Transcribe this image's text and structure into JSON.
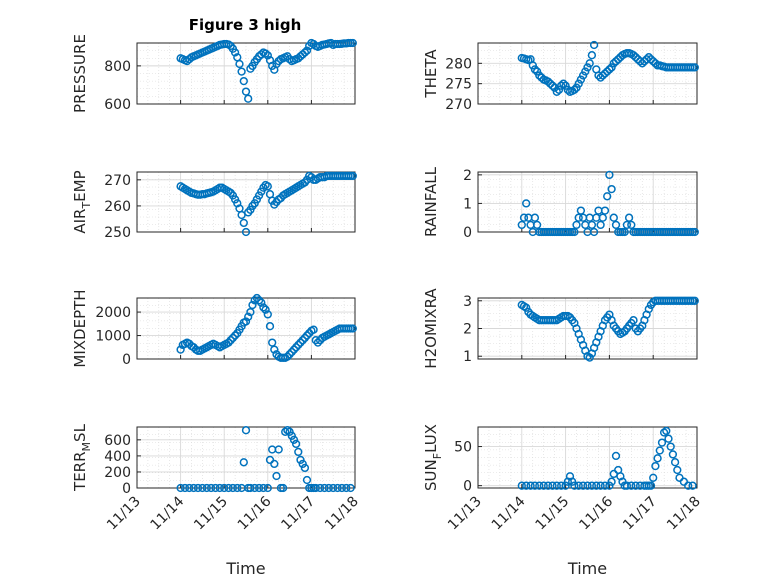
{
  "figure": {
    "title": "Figure 3 high",
    "marker_color": "#0072BD",
    "axis_color": "#262626",
    "grid_color": "#d8d8d8"
  },
  "chart_data": [
    {
      "type": "scatter",
      "name": "pressure",
      "title": "Figure 3 high",
      "ylabel_main": "PRESSURE",
      "ylabel_sub": "",
      "xlabel": "",
      "ylim": [
        600,
        920
      ],
      "yticks": [
        600,
        800
      ],
      "xlim": [
        0,
        5
      ],
      "x": [
        1.0,
        1.05,
        1.1,
        1.15,
        1.2,
        1.25,
        1.3,
        1.35,
        1.4,
        1.45,
        1.5,
        1.55,
        1.6,
        1.65,
        1.7,
        1.75,
        1.8,
        1.85,
        1.9,
        1.95,
        2.0,
        2.05,
        2.1,
        2.15,
        2.2,
        2.25,
        2.3,
        2.35,
        2.4,
        2.45,
        2.5,
        2.55,
        2.6,
        2.65,
        2.7,
        2.75,
        2.8,
        2.85,
        2.9,
        2.95,
        3.0,
        3.05,
        3.1,
        3.15,
        3.2,
        3.25,
        3.3,
        3.35,
        3.4,
        3.45,
        3.5,
        3.55,
        3.6,
        3.65,
        3.7,
        3.75,
        3.8,
        3.85,
        3.9,
        3.95,
        4.0,
        4.05,
        4.1,
        4.15,
        4.2,
        4.25,
        4.3,
        4.35,
        4.4,
        4.45,
        4.5,
        4.55,
        4.6,
        4.65,
        4.7,
        4.75,
        4.8,
        4.85,
        4.9,
        4.95
      ],
      "y": [
        840,
        835,
        830,
        825,
        835,
        845,
        850,
        855,
        860,
        865,
        870,
        875,
        880,
        885,
        890,
        895,
        900,
        905,
        910,
        912,
        915,
        915,
        912,
        905,
        890,
        870,
        845,
        810,
        770,
        720,
        665,
        628,
        785,
        800,
        820,
        835,
        850,
        860,
        870,
        865,
        855,
        830,
        800,
        780,
        810,
        825,
        835,
        840,
        845,
        850,
        835,
        825,
        830,
        835,
        840,
        850,
        860,
        870,
        880,
        905,
        920,
        915,
        905,
        900,
        905,
        910,
        912,
        915,
        918,
        920,
        910,
        915,
        915,
        915,
        916,
        918,
        918,
        920,
        920,
        920
      ]
    },
    {
      "type": "scatter",
      "name": "theta",
      "ylabel_main": "THETA",
      "ylabel_sub": "",
      "xlabel": "",
      "ylim": [
        270,
        285
      ],
      "yticks": [
        270,
        275,
        280
      ],
      "xlim": [
        0,
        5
      ],
      "x": [
        1.0,
        1.05,
        1.1,
        1.15,
        1.2,
        1.25,
        1.3,
        1.35,
        1.4,
        1.45,
        1.5,
        1.55,
        1.6,
        1.65,
        1.7,
        1.75,
        1.8,
        1.85,
        1.9,
        1.95,
        2.0,
        2.05,
        2.1,
        2.15,
        2.2,
        2.25,
        2.3,
        2.35,
        2.4,
        2.45,
        2.5,
        2.55,
        2.6,
        2.65,
        2.7,
        2.75,
        2.8,
        2.85,
        2.9,
        2.95,
        3.0,
        3.05,
        3.1,
        3.15,
        3.2,
        3.25,
        3.3,
        3.35,
        3.4,
        3.45,
        3.5,
        3.55,
        3.6,
        3.65,
        3.7,
        3.75,
        3.8,
        3.85,
        3.9,
        3.95,
        4.0,
        4.05,
        4.1,
        4.15,
        4.2,
        4.25,
        4.3,
        4.35,
        4.4,
        4.45,
        4.5,
        4.55,
        4.6,
        4.65,
        4.7,
        4.75,
        4.8,
        4.85,
        4.9,
        4.95
      ],
      "y": [
        281.3,
        281.2,
        281.0,
        280.8,
        281.0,
        279.5,
        278.5,
        278.0,
        277.0,
        276.5,
        276.0,
        275.8,
        275.5,
        275.0,
        274.5,
        274.0,
        273.0,
        273.5,
        274.5,
        275.0,
        274.5,
        273.5,
        273.0,
        273.2,
        273.5,
        274.0,
        275.0,
        276.0,
        277.0,
        278.0,
        279.0,
        280.0,
        282.0,
        284.5,
        278.5,
        277.0,
        276.5,
        277.0,
        277.5,
        278.0,
        278.5,
        279.0,
        280.0,
        280.5,
        281.0,
        281.5,
        282.0,
        282.3,
        282.5,
        282.5,
        282.3,
        282.0,
        281.5,
        281.0,
        280.5,
        280.0,
        280.5,
        281.0,
        281.5,
        281.0,
        280.5,
        280.0,
        279.5,
        279.5,
        279.3,
        279.2,
        279.0,
        279.0,
        279.0,
        279.0,
        279.0,
        279.0,
        279.0,
        279.0,
        279.0,
        279.0,
        279.0,
        279.0,
        279.0,
        279.0
      ]
    },
    {
      "type": "scatter",
      "name": "air-temp",
      "ylabel_main": "AIR",
      "ylabel_sub": "T",
      "ylabel_rest": "EMP",
      "xlabel": "",
      "ylim": [
        250,
        273
      ],
      "yticks": [
        250,
        260,
        270
      ],
      "xlim": [
        0,
        5
      ],
      "x": [
        1.0,
        1.05,
        1.1,
        1.15,
        1.2,
        1.25,
        1.3,
        1.35,
        1.4,
        1.45,
        1.5,
        1.55,
        1.6,
        1.65,
        1.7,
        1.75,
        1.8,
        1.85,
        1.9,
        1.95,
        2.0,
        2.05,
        2.1,
        2.15,
        2.2,
        2.25,
        2.3,
        2.35,
        2.4,
        2.45,
        2.5,
        2.55,
        2.6,
        2.65,
        2.7,
        2.75,
        2.8,
        2.85,
        2.9,
        2.95,
        3.0,
        3.05,
        3.1,
        3.15,
        3.2,
        3.25,
        3.3,
        3.35,
        3.4,
        3.45,
        3.5,
        3.55,
        3.6,
        3.65,
        3.7,
        3.75,
        3.8,
        3.85,
        3.9,
        3.95,
        4.0,
        4.05,
        4.1,
        4.15,
        4.2,
        4.25,
        4.3,
        4.35,
        4.4,
        4.45,
        4.5,
        4.55,
        4.6,
        4.65,
        4.7,
        4.75,
        4.8,
        4.85,
        4.9,
        4.95
      ],
      "y": [
        267.5,
        267.0,
        266.5,
        266.0,
        265.5,
        265.0,
        264.8,
        264.5,
        264.3,
        264.3,
        264.5,
        264.5,
        264.8,
        265.0,
        265.2,
        265.5,
        266.0,
        266.5,
        267.0,
        267.0,
        266.5,
        266.0,
        265.5,
        265.0,
        264.0,
        262.5,
        261.0,
        259.0,
        256.5,
        253.5,
        250.0,
        257.5,
        258.5,
        260.0,
        261.0,
        262.5,
        264.0,
        265.5,
        267.0,
        268.0,
        267.5,
        264.5,
        262.0,
        260.5,
        261.5,
        262.5,
        263.0,
        264.0,
        264.5,
        265.0,
        265.5,
        266.0,
        266.5,
        267.0,
        267.5,
        268.0,
        268.5,
        269.0,
        270.0,
        271.5,
        271.0,
        270.0,
        270.0,
        270.5,
        271.0,
        271.0,
        271.0,
        271.5,
        271.5,
        271.5,
        271.5,
        271.5,
        271.5,
        271.5,
        271.5,
        271.5,
        271.5,
        271.5,
        271.5,
        271.5
      ]
    },
    {
      "type": "scatter",
      "name": "rainfall",
      "ylabel_main": "RAINFALL",
      "ylabel_sub": "",
      "xlabel": "",
      "ylim": [
        0,
        2.1
      ],
      "yticks": [
        0,
        1,
        2
      ],
      "xlim": [
        0,
        5
      ],
      "x": [
        1.0,
        1.05,
        1.1,
        1.15,
        1.2,
        1.25,
        1.3,
        1.35,
        1.4,
        1.45,
        1.5,
        1.55,
        1.6,
        1.65,
        1.7,
        1.75,
        1.8,
        1.85,
        1.9,
        1.95,
        2.0,
        2.05,
        2.1,
        2.15,
        2.2,
        2.25,
        2.3,
        2.35,
        2.4,
        2.45,
        2.5,
        2.55,
        2.6,
        2.65,
        2.7,
        2.75,
        2.8,
        2.85,
        2.9,
        2.95,
        3.0,
        3.05,
        3.1,
        3.15,
        3.2,
        3.25,
        3.3,
        3.35,
        3.4,
        3.45,
        3.5,
        3.55,
        3.6,
        3.65,
        3.7,
        3.75,
        3.8,
        3.85,
        3.9,
        3.95,
        4.0,
        4.05,
        4.1,
        4.15,
        4.2,
        4.25,
        4.3,
        4.35,
        4.4,
        4.45,
        4.5,
        4.55,
        4.6,
        4.65,
        4.7,
        4.75,
        4.8,
        4.85,
        4.9,
        4.95
      ],
      "y": [
        0.25,
        0.5,
        1.0,
        0.5,
        0.25,
        0.0,
        0.5,
        0.25,
        0.0,
        0.0,
        0.0,
        0.0,
        0.0,
        0.0,
        0.0,
        0.0,
        0.0,
        0.0,
        0.0,
        0.0,
        0.0,
        0.0,
        0.0,
        0.0,
        0.0,
        0.25,
        0.5,
        0.75,
        0.5,
        0.25,
        0.0,
        0.5,
        0.25,
        0.0,
        0.5,
        0.75,
        0.25,
        0.5,
        0.75,
        1.25,
        2.0,
        1.5,
        0.5,
        0.25,
        0.0,
        0.0,
        0.0,
        0.0,
        0.25,
        0.5,
        0.25,
        0.0,
        0.0,
        0.0,
        0.0,
        0.0,
        0.0,
        0.0,
        0.0,
        0.0,
        0.0,
        0.0,
        0.0,
        0.0,
        0.0,
        0.0,
        0.0,
        0.0,
        0.0,
        0.0,
        0.0,
        0.0,
        0.0,
        0.0,
        0.0,
        0.0,
        0.0,
        0.0,
        0.0,
        0.0
      ]
    },
    {
      "type": "scatter",
      "name": "mixdepth",
      "ylabel_main": "MIXDEPTH",
      "ylabel_sub": "",
      "xlabel": "",
      "ylim": [
        0,
        2600
      ],
      "yticks": [
        0,
        1000,
        2000
      ],
      "xlim": [
        0,
        5
      ],
      "x": [
        1.0,
        1.05,
        1.1,
        1.15,
        1.2,
        1.25,
        1.3,
        1.35,
        1.4,
        1.45,
        1.5,
        1.55,
        1.6,
        1.65,
        1.7,
        1.75,
        1.8,
        1.85,
        1.9,
        1.95,
        2.0,
        2.05,
        2.1,
        2.15,
        2.2,
        2.25,
        2.3,
        2.35,
        2.4,
        2.45,
        2.5,
        2.55,
        2.6,
        2.65,
        2.7,
        2.75,
        2.8,
        2.85,
        2.9,
        2.95,
        3.0,
        3.05,
        3.1,
        3.15,
        3.2,
        3.25,
        3.3,
        3.35,
        3.4,
        3.45,
        3.5,
        3.55,
        3.6,
        3.65,
        3.7,
        3.75,
        3.8,
        3.85,
        3.9,
        3.95,
        4.0,
        4.05,
        4.1,
        4.15,
        4.2,
        4.25,
        4.3,
        4.35,
        4.4,
        4.45,
        4.5,
        4.55,
        4.6,
        4.65,
        4.7,
        4.75,
        4.8,
        4.85,
        4.9,
        4.95
      ],
      "y": [
        400,
        600,
        650,
        700,
        650,
        550,
        500,
        400,
        350,
        350,
        400,
        450,
        500,
        550,
        600,
        650,
        600,
        550,
        500,
        550,
        600,
        650,
        700,
        800,
        900,
        1000,
        1100,
        1250,
        1400,
        1550,
        1600,
        1800,
        2000,
        2300,
        2500,
        2600,
        2500,
        2400,
        2200,
        2100,
        1900,
        1400,
        700,
        400,
        200,
        100,
        50,
        50,
        50,
        100,
        200,
        300,
        400,
        500,
        600,
        700,
        800,
        900,
        1000,
        1100,
        1200,
        1250,
        800,
        700,
        800,
        900,
        950,
        1000,
        1050,
        1100,
        1150,
        1200,
        1250,
        1300,
        1300,
        1300,
        1300,
        1300,
        1300,
        1300
      ]
    },
    {
      "type": "scatter",
      "name": "h2omixra",
      "ylabel_main": "H2OMIXRA",
      "ylabel_sub": "",
      "xlabel": "",
      "ylim": [
        0.9,
        3.1
      ],
      "yticks": [
        1,
        2,
        3
      ],
      "xlim": [
        0,
        5
      ],
      "x": [
        1.0,
        1.05,
        1.1,
        1.15,
        1.2,
        1.25,
        1.3,
        1.35,
        1.4,
        1.45,
        1.5,
        1.55,
        1.6,
        1.65,
        1.7,
        1.75,
        1.8,
        1.85,
        1.9,
        1.95,
        2.0,
        2.05,
        2.1,
        2.15,
        2.2,
        2.25,
        2.3,
        2.35,
        2.4,
        2.45,
        2.5,
        2.55,
        2.6,
        2.65,
        2.7,
        2.75,
        2.8,
        2.85,
        2.9,
        2.95,
        3.0,
        3.05,
        3.1,
        3.15,
        3.2,
        3.25,
        3.3,
        3.35,
        3.4,
        3.45,
        3.5,
        3.55,
        3.6,
        3.65,
        3.7,
        3.75,
        3.8,
        3.85,
        3.9,
        3.95,
        4.0,
        4.05,
        4.1,
        4.15,
        4.2,
        4.25,
        4.3,
        4.35,
        4.4,
        4.45,
        4.5,
        4.55,
        4.6,
        4.65,
        4.7,
        4.75,
        4.8,
        4.85,
        4.9,
        4.95
      ],
      "y": [
        2.85,
        2.8,
        2.75,
        2.6,
        2.5,
        2.45,
        2.4,
        2.35,
        2.3,
        2.3,
        2.3,
        2.3,
        2.3,
        2.3,
        2.3,
        2.3,
        2.3,
        2.35,
        2.4,
        2.45,
        2.45,
        2.45,
        2.4,
        2.3,
        2.2,
        2.0,
        1.8,
        1.6,
        1.4,
        1.2,
        1.0,
        0.95,
        1.1,
        1.3,
        1.5,
        1.7,
        1.9,
        2.1,
        2.3,
        2.4,
        2.5,
        2.3,
        2.1,
        2.0,
        1.9,
        1.8,
        1.85,
        1.9,
        2.0,
        2.1,
        2.2,
        2.3,
        2.0,
        1.9,
        2.0,
        2.1,
        2.3,
        2.5,
        2.7,
        2.85,
        2.95,
        3.0,
        3.0,
        3.0,
        3.0,
        3.0,
        3.0,
        3.0,
        3.0,
        3.0,
        3.0,
        3.0,
        3.0,
        3.0,
        3.0,
        3.0,
        3.0,
        3.0,
        3.0,
        3.0
      ]
    },
    {
      "type": "scatter",
      "name": "terr-msl",
      "ylabel_main": "TERR",
      "ylabel_sub": "M",
      "ylabel_rest": "SL",
      "xlabel": "Time",
      "ylim": [
        0,
        760
      ],
      "yticks": [
        0,
        200,
        400,
        600
      ],
      "xlim": [
        0,
        5
      ],
      "xticks": [
        "11/13",
        "11/14",
        "11/15",
        "11/16",
        "11/17",
        "11/18"
      ],
      "x": [
        1.0,
        1.1,
        1.2,
        1.3,
        1.4,
        1.5,
        1.6,
        1.7,
        1.8,
        1.9,
        2.0,
        2.1,
        2.2,
        2.3,
        2.4,
        2.45,
        2.5,
        2.55,
        2.6,
        2.7,
        2.8,
        2.9,
        3.0,
        3.05,
        3.1,
        3.15,
        3.2,
        3.25,
        3.3,
        3.35,
        3.4,
        3.45,
        3.5,
        3.55,
        3.6,
        3.65,
        3.7,
        3.75,
        3.8,
        3.85,
        3.9,
        3.95,
        4.0,
        4.05,
        4.1,
        4.2,
        4.3,
        4.4,
        4.5,
        4.6,
        4.7,
        4.8,
        4.9
      ],
      "y": [
        0,
        0,
        0,
        0,
        0,
        0,
        0,
        0,
        0,
        0,
        0,
        0,
        0,
        0,
        0,
        320,
        720,
        0,
        0,
        0,
        0,
        0,
        0,
        350,
        480,
        300,
        150,
        480,
        0,
        0,
        700,
        720,
        700,
        650,
        600,
        550,
        450,
        350,
        300,
        250,
        100,
        0,
        0,
        0,
        0,
        0,
        0,
        0,
        0,
        0,
        0,
        0,
        0
      ]
    },
    {
      "type": "scatter",
      "name": "sun-flux",
      "ylabel_main": "SUN",
      "ylabel_sub": "F",
      "ylabel_rest": "LUX",
      "xlabel": "Time",
      "ylim": [
        -3,
        75
      ],
      "yticks": [
        0,
        50
      ],
      "xlim": [
        0,
        5
      ],
      "xticks": [
        "11/13",
        "11/14",
        "11/15",
        "11/16",
        "11/17",
        "11/18"
      ],
      "x": [
        1.0,
        1.1,
        1.2,
        1.3,
        1.4,
        1.5,
        1.6,
        1.7,
        1.8,
        1.9,
        2.0,
        2.05,
        2.1,
        2.15,
        2.2,
        2.3,
        2.4,
        2.5,
        2.6,
        2.7,
        2.8,
        2.9,
        3.0,
        3.05,
        3.1,
        3.15,
        3.2,
        3.25,
        3.3,
        3.35,
        3.4,
        3.5,
        3.6,
        3.7,
        3.8,
        3.85,
        3.9,
        3.95,
        4.0,
        4.05,
        4.1,
        4.15,
        4.2,
        4.25,
        4.3,
        4.35,
        4.4,
        4.45,
        4.5,
        4.55,
        4.6,
        4.7,
        4.8,
        4.9
      ],
      "y": [
        0,
        0,
        0,
        0,
        0,
        0,
        0,
        0,
        0,
        0,
        0,
        5,
        12,
        5,
        0,
        0,
        0,
        0,
        0,
        0,
        0,
        0,
        0,
        5,
        15,
        38,
        20,
        12,
        5,
        0,
        0,
        0,
        0,
        0,
        0,
        0,
        0,
        0,
        10,
        25,
        35,
        45,
        55,
        68,
        70,
        60,
        50,
        40,
        30,
        20,
        10,
        5,
        0,
        0
      ]
    }
  ]
}
